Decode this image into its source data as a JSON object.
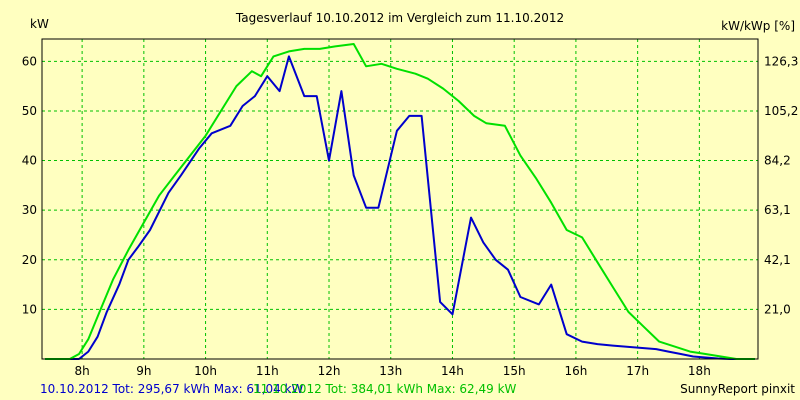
{
  "chart_data": {
    "type": "line",
    "title": "Tagesverlauf 10.10.2012 im Vergleich zum 11.10.2012",
    "ylabel_left": "kW",
    "ylabel_right": "kW/kWp [%]",
    "x_ticks": [
      "8h",
      "9h",
      "10h",
      "11h",
      "12h",
      "13h",
      "14h",
      "15h",
      "16h",
      "17h",
      "18h"
    ],
    "y_ticks_left": [
      "10",
      "20",
      "30",
      "40",
      "50",
      "60"
    ],
    "y_ticks_right": [
      "21,0",
      "42,1",
      "63,1",
      "84,2",
      "105,2",
      "126,3"
    ],
    "xlim": [
      7.35,
      18.95
    ],
    "ylim": [
      0,
      64.5
    ],
    "grid": true,
    "series": [
      {
        "name": "10.10.2012",
        "color": "#0000cc",
        "x": [
          7.4,
          7.8,
          7.95,
          8.1,
          8.25,
          8.4,
          8.6,
          8.75,
          8.9,
          9.1,
          9.4,
          9.6,
          9.9,
          10.1,
          10.4,
          10.6,
          10.8,
          11.0,
          11.2,
          11.35,
          11.6,
          11.8,
          12.0,
          12.2,
          12.4,
          12.6,
          12.8,
          13.1,
          13.3,
          13.5,
          13.8,
          14.0,
          14.3,
          14.5,
          14.7,
          14.9,
          15.1,
          15.4,
          15.6,
          15.85,
          16.1,
          16.35,
          16.6,
          16.8,
          17.0,
          17.3,
          17.5,
          17.7,
          17.9,
          18.1,
          18.3,
          18.5,
          18.7,
          18.9
        ],
        "y": [
          0,
          0,
          0,
          1.5,
          4.5,
          9.5,
          15.0,
          20.0,
          22.5,
          26.0,
          33.5,
          37.0,
          42.5,
          45.5,
          47.0,
          51.0,
          53.0,
          57.0,
          54.0,
          61.0,
          53.0,
          53.0,
          40.0,
          54.0,
          37.0,
          30.5,
          30.5,
          46.0,
          49.0,
          49.0,
          11.5,
          9.0,
          28.5,
          23.5,
          20.0,
          18.0,
          12.5,
          11.0,
          15.0,
          5.0,
          3.5,
          3.0,
          2.7,
          2.5,
          2.3,
          2.0,
          1.5,
          1.0,
          0.5,
          0.3,
          0.1,
          0,
          0,
          0
        ]
      },
      {
        "name": "11.10.2012",
        "color": "#00e000",
        "x": [
          7.4,
          7.8,
          7.95,
          8.1,
          8.3,
          8.5,
          8.75,
          9.0,
          9.25,
          9.5,
          9.75,
          10.0,
          10.25,
          10.5,
          10.75,
          10.9,
          11.1,
          11.35,
          11.6,
          11.85,
          12.1,
          12.4,
          12.6,
          12.85,
          13.1,
          13.4,
          13.6,
          13.85,
          14.1,
          14.35,
          14.55,
          14.85,
          15.1,
          15.35,
          15.6,
          15.85,
          16.1,
          16.35,
          16.6,
          16.85,
          17.1,
          17.35,
          17.6,
          17.85,
          18.1,
          18.35,
          18.6,
          18.9
        ],
        "y": [
          0,
          0,
          1.0,
          4.0,
          10.0,
          16.0,
          22.0,
          27.5,
          33.0,
          37.0,
          41.0,
          45.0,
          50.0,
          55.0,
          58.0,
          57.0,
          61.0,
          62.0,
          62.5,
          62.5,
          63.0,
          63.5,
          59.0,
          59.5,
          58.5,
          57.5,
          56.5,
          54.5,
          52.0,
          49.0,
          47.5,
          47.0,
          41.0,
          36.5,
          31.5,
          26.0,
          24.5,
          19.5,
          14.5,
          9.5,
          6.5,
          3.5,
          2.5,
          1.5,
          1.0,
          0.5,
          0,
          0
        ]
      }
    ],
    "footer_left_1": "10.10.2012 Tot: 295,67 kWh Max: 61,04 kW",
    "footer_left_2": "11.10.2012 Tot: 384,01 kWh Max: 62,49 kW",
    "footer_right": "SunnyReport pinxit"
  }
}
